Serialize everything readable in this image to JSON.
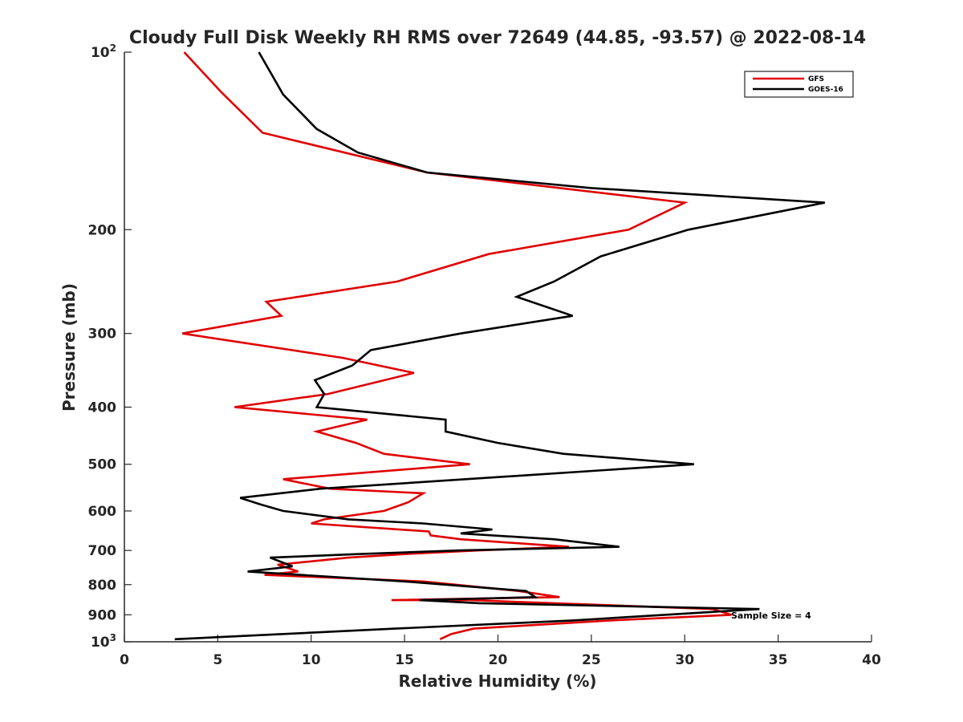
{
  "chart_data": {
    "type": "line",
    "title": "Cloudy Full Disk Weekly RH RMS over 72649 (44.85, -93.57) @ 2022-08-14",
    "xlabel": "Relative Humidity (%)",
    "ylabel": "Pressure (mb)",
    "xlim": [
      0,
      40
    ],
    "ylim": [
      100,
      1000
    ],
    "y_scale": "log",
    "y_reversed": true,
    "grid": false,
    "legend_position": "top-right",
    "x_ticks": [
      "0",
      "5",
      "10",
      "15",
      "20",
      "25",
      "30",
      "35",
      "40"
    ],
    "y_ticks": [
      {
        "value": 100,
        "base": "10",
        "exp": "2"
      },
      {
        "value": 200,
        "text": "200"
      },
      {
        "value": 300,
        "text": "300"
      },
      {
        "value": 400,
        "text": "400"
      },
      {
        "value": 500,
        "text": "500"
      },
      {
        "value": 600,
        "text": "600"
      },
      {
        "value": 700,
        "text": "700"
      },
      {
        "value": 800,
        "text": "800"
      },
      {
        "value": 900,
        "text": "900"
      },
      {
        "value": 1000,
        "base": "10",
        "exp": "3"
      }
    ],
    "series": [
      {
        "name": "GFS",
        "color": "#e00000",
        "points": [
          [
            3.2,
            100
          ],
          [
            5.2,
            117
          ],
          [
            7.4,
            137
          ],
          [
            16.2,
            160
          ],
          [
            30.0,
            180
          ],
          [
            27.0,
            200
          ],
          [
            19.5,
            220
          ],
          [
            14.6,
            245
          ],
          [
            7.6,
            265
          ],
          [
            8.4,
            280
          ],
          [
            3.1,
            300
          ],
          [
            11.7,
            330
          ],
          [
            15.5,
            350
          ],
          [
            10.9,
            380
          ],
          [
            5.9,
            400
          ],
          [
            13.0,
            420
          ],
          [
            10.3,
            440
          ],
          [
            12.4,
            460
          ],
          [
            13.9,
            480
          ],
          [
            18.5,
            500
          ],
          [
            8.5,
            530
          ],
          [
            11.0,
            550
          ],
          [
            16.0,
            560
          ],
          [
            15.2,
            580
          ],
          [
            13.9,
            600
          ],
          [
            10.7,
            620
          ],
          [
            10.0,
            630
          ],
          [
            16.3,
            650
          ],
          [
            16.4,
            660
          ],
          [
            18.0,
            670
          ],
          [
            23.8,
            690
          ],
          [
            19.0,
            700
          ],
          [
            15.0,
            710
          ],
          [
            12.0,
            720
          ],
          [
            8.2,
            740
          ],
          [
            9.3,
            760
          ],
          [
            7.5,
            770
          ],
          [
            16.0,
            790
          ],
          [
            21.1,
            820
          ],
          [
            23.3,
            840
          ],
          [
            14.3,
            850
          ],
          [
            18.5,
            850
          ],
          [
            31.5,
            880
          ],
          [
            32.5,
            900
          ],
          [
            26.0,
            920
          ],
          [
            18.7,
            950
          ],
          [
            17.5,
            970
          ],
          [
            16.9,
            990
          ]
        ]
      },
      {
        "name": "GOES-16",
        "color": "#000000",
        "points": [
          [
            7.2,
            100
          ],
          [
            8.5,
            118
          ],
          [
            10.3,
            135
          ],
          [
            12.5,
            148
          ],
          [
            16.2,
            160
          ],
          [
            25.0,
            170
          ],
          [
            37.5,
            180
          ],
          [
            30.2,
            200
          ],
          [
            25.5,
            222
          ],
          [
            23.0,
            245
          ],
          [
            21.0,
            260
          ],
          [
            24.0,
            280
          ],
          [
            18.0,
            300
          ],
          [
            13.2,
            320
          ],
          [
            12.2,
            340
          ],
          [
            10.2,
            360
          ],
          [
            10.7,
            380
          ],
          [
            10.3,
            400
          ],
          [
            17.2,
            420
          ],
          [
            17.2,
            440
          ],
          [
            20.0,
            460
          ],
          [
            23.5,
            480
          ],
          [
            30.5,
            500
          ],
          [
            10.5,
            550
          ],
          [
            6.2,
            570
          ],
          [
            7.3,
            585
          ],
          [
            8.5,
            600
          ],
          [
            12.0,
            620
          ],
          [
            16.0,
            630
          ],
          [
            19.7,
            645
          ],
          [
            18.0,
            655
          ],
          [
            23.0,
            670
          ],
          [
            26.5,
            690
          ],
          [
            18.0,
            700
          ],
          [
            12.5,
            710
          ],
          [
            7.8,
            720
          ],
          [
            9.0,
            745
          ],
          [
            6.6,
            760
          ],
          [
            15.0,
            790
          ],
          [
            21.5,
            820
          ],
          [
            22.0,
            840
          ],
          [
            15.8,
            850
          ],
          [
            19.0,
            860
          ],
          [
            34.0,
            880
          ],
          [
            24.0,
            920
          ],
          [
            14.5,
            950
          ],
          [
            2.7,
            990
          ]
        ]
      }
    ],
    "annotations": [
      {
        "text": "Sample Size = 4"
      }
    ]
  }
}
